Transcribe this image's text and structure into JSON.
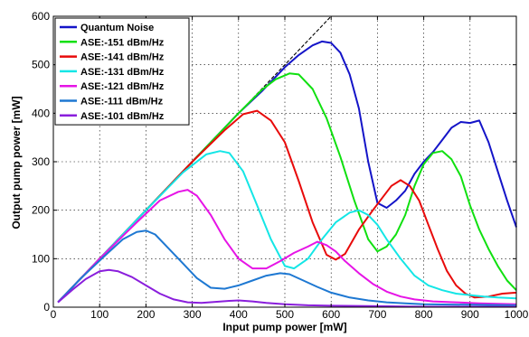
{
  "chart_data": {
    "type": "line",
    "xlabel": "Input pump power  [mW]",
    "ylabel": "Output pump power  [mW]",
    "xlim": [
      0,
      1000
    ],
    "ylim": [
      0,
      600
    ],
    "xticks": [
      0,
      100,
      200,
      300,
      400,
      500,
      600,
      700,
      800,
      900,
      1000
    ],
    "yticks": [
      0,
      100,
      200,
      300,
      400,
      500,
      600
    ],
    "grid": true,
    "legend_position": "top-left",
    "reference_line": {
      "style": "dashed",
      "color": "#000000",
      "points": [
        [
          10,
          10
        ],
        [
          600,
          600
        ]
      ]
    },
    "series": [
      {
        "name": "Quantum Noise",
        "color": "#1414c8",
        "points": [
          [
            10,
            10
          ],
          [
            100,
            100
          ],
          [
            200,
            200
          ],
          [
            300,
            300
          ],
          [
            400,
            400
          ],
          [
            450,
            445
          ],
          [
            500,
            495
          ],
          [
            530,
            520
          ],
          [
            560,
            540
          ],
          [
            580,
            548
          ],
          [
            600,
            545
          ],
          [
            620,
            525
          ],
          [
            640,
            480
          ],
          [
            660,
            410
          ],
          [
            680,
            300
          ],
          [
            700,
            215
          ],
          [
            720,
            205
          ],
          [
            740,
            220
          ],
          [
            760,
            240
          ],
          [
            780,
            275
          ],
          [
            800,
            300
          ],
          [
            820,
            320
          ],
          [
            840,
            345
          ],
          [
            860,
            370
          ],
          [
            880,
            382
          ],
          [
            900,
            380
          ],
          [
            920,
            385
          ],
          [
            940,
            340
          ],
          [
            960,
            280
          ],
          [
            980,
            220
          ],
          [
            1000,
            165
          ]
        ]
      },
      {
        "name": "ASE:-151 dBm/Hz",
        "color": "#10e010",
        "points": [
          [
            10,
            10
          ],
          [
            100,
            100
          ],
          [
            200,
            200
          ],
          [
            300,
            300
          ],
          [
            400,
            400
          ],
          [
            450,
            448
          ],
          [
            480,
            470
          ],
          [
            510,
            482
          ],
          [
            530,
            480
          ],
          [
            560,
            450
          ],
          [
            590,
            390
          ],
          [
            620,
            310
          ],
          [
            650,
            220
          ],
          [
            680,
            140
          ],
          [
            700,
            115
          ],
          [
            720,
            125
          ],
          [
            740,
            150
          ],
          [
            760,
            190
          ],
          [
            780,
            250
          ],
          [
            800,
            295
          ],
          [
            820,
            318
          ],
          [
            840,
            322
          ],
          [
            860,
            305
          ],
          [
            880,
            270
          ],
          [
            900,
            210
          ],
          [
            920,
            160
          ],
          [
            940,
            120
          ],
          [
            960,
            85
          ],
          [
            980,
            55
          ],
          [
            1000,
            35
          ]
        ]
      },
      {
        "name": "ASE:-141 dBm/Hz",
        "color": "#e80a0a",
        "points": [
          [
            10,
            10
          ],
          [
            100,
            100
          ],
          [
            200,
            200
          ],
          [
            300,
            300
          ],
          [
            370,
            365
          ],
          [
            410,
            398
          ],
          [
            440,
            405
          ],
          [
            470,
            385
          ],
          [
            500,
            340
          ],
          [
            530,
            260
          ],
          [
            560,
            175
          ],
          [
            590,
            108
          ],
          [
            610,
            98
          ],
          [
            630,
            110
          ],
          [
            660,
            160
          ],
          [
            690,
            200
          ],
          [
            710,
            225
          ],
          [
            730,
            250
          ],
          [
            750,
            262
          ],
          [
            770,
            250
          ],
          [
            790,
            220
          ],
          [
            810,
            170
          ],
          [
            830,
            120
          ],
          [
            850,
            75
          ],
          [
            870,
            45
          ],
          [
            890,
            28
          ],
          [
            910,
            20
          ],
          [
            940,
            22
          ],
          [
            970,
            28
          ],
          [
            1000,
            30
          ]
        ]
      },
      {
        "name": "ASE:-131 dBm/Hz",
        "color": "#14e6e6",
        "points": [
          [
            10,
            10
          ],
          [
            100,
            100
          ],
          [
            200,
            200
          ],
          [
            280,
            278
          ],
          [
            330,
            315
          ],
          [
            360,
            322
          ],
          [
            380,
            318
          ],
          [
            410,
            280
          ],
          [
            440,
            210
          ],
          [
            470,
            140
          ],
          [
            500,
            85
          ],
          [
            520,
            80
          ],
          [
            550,
            100
          ],
          [
            580,
            140
          ],
          [
            610,
            175
          ],
          [
            640,
            195
          ],
          [
            660,
            200
          ],
          [
            680,
            190
          ],
          [
            700,
            170
          ],
          [
            720,
            140
          ],
          [
            750,
            100
          ],
          [
            780,
            65
          ],
          [
            810,
            45
          ],
          [
            840,
            35
          ],
          [
            870,
            28
          ],
          [
            900,
            25
          ],
          [
            930,
            22
          ],
          [
            960,
            20
          ],
          [
            1000,
            18
          ]
        ]
      },
      {
        "name": "ASE:-121 dBm/Hz",
        "color": "#e614e6",
        "points": [
          [
            10,
            10
          ],
          [
            100,
            100
          ],
          [
            180,
            175
          ],
          [
            230,
            220
          ],
          [
            270,
            238
          ],
          [
            290,
            242
          ],
          [
            310,
            230
          ],
          [
            340,
            190
          ],
          [
            370,
            140
          ],
          [
            400,
            100
          ],
          [
            430,
            80
          ],
          [
            460,
            80
          ],
          [
            490,
            95
          ],
          [
            520,
            112
          ],
          [
            550,
            125
          ],
          [
            570,
            135
          ],
          [
            590,
            128
          ],
          [
            610,
            115
          ],
          [
            630,
            95
          ],
          [
            660,
            70
          ],
          [
            690,
            48
          ],
          [
            720,
            32
          ],
          [
            750,
            22
          ],
          [
            780,
            16
          ],
          [
            820,
            12
          ],
          [
            870,
            10
          ],
          [
            920,
            8
          ],
          [
            1000,
            6
          ]
        ]
      },
      {
        "name": "ASE:-111 dBm/Hz",
        "color": "#1e78d2",
        "points": [
          [
            10,
            10
          ],
          [
            60,
            60
          ],
          [
            110,
            105
          ],
          [
            150,
            140
          ],
          [
            180,
            155
          ],
          [
            200,
            158
          ],
          [
            220,
            150
          ],
          [
            250,
            120
          ],
          [
            280,
            90
          ],
          [
            310,
            60
          ],
          [
            340,
            40
          ],
          [
            370,
            38
          ],
          [
            400,
            45
          ],
          [
            430,
            55
          ],
          [
            460,
            65
          ],
          [
            490,
            70
          ],
          [
            510,
            68
          ],
          [
            540,
            55
          ],
          [
            570,
            42
          ],
          [
            600,
            30
          ],
          [
            640,
            20
          ],
          [
            680,
            14
          ],
          [
            720,
            10
          ],
          [
            760,
            8
          ],
          [
            800,
            6
          ],
          [
            900,
            5
          ],
          [
            1000,
            4
          ]
        ]
      },
      {
        "name": "ASE:-101 dBm/Hz",
        "color": "#8a1edc",
        "points": [
          [
            10,
            10
          ],
          [
            40,
            35
          ],
          [
            70,
            58
          ],
          [
            100,
            74
          ],
          [
            120,
            77
          ],
          [
            140,
            74
          ],
          [
            170,
            62
          ],
          [
            200,
            45
          ],
          [
            230,
            28
          ],
          [
            260,
            16
          ],
          [
            290,
            10
          ],
          [
            320,
            9
          ],
          [
            350,
            11
          ],
          [
            380,
            13
          ],
          [
            400,
            14
          ],
          [
            430,
            12
          ],
          [
            460,
            9
          ],
          [
            500,
            6
          ],
          [
            550,
            4
          ],
          [
            600,
            3
          ],
          [
            700,
            2
          ],
          [
            800,
            1
          ],
          [
            1000,
            1
          ]
        ]
      }
    ]
  }
}
